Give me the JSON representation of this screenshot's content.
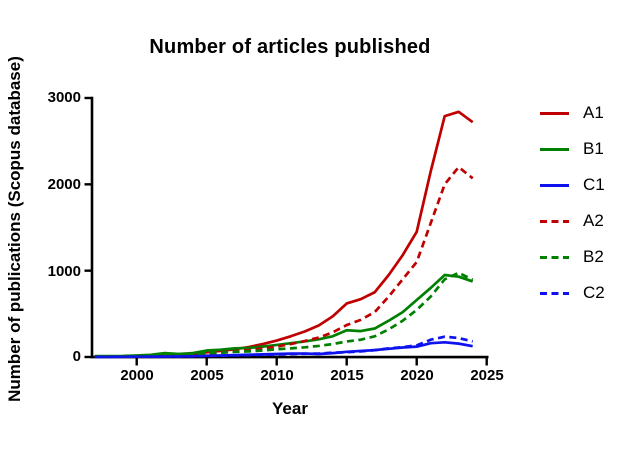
{
  "chart_data": {
    "type": "line",
    "title": "Number of articles published",
    "xlabel": "Year",
    "ylabel": "Number of publications (Scopus database)",
    "x": [
      1997,
      1998,
      1999,
      2000,
      2001,
      2002,
      2003,
      2004,
      2005,
      2006,
      2007,
      2008,
      2009,
      2010,
      2011,
      2012,
      2013,
      2014,
      2015,
      2016,
      2017,
      2018,
      2019,
      2020,
      2021,
      2022,
      2023,
      2024
    ],
    "x_ticks": [
      2000,
      2005,
      2010,
      2015,
      2020,
      2025
    ],
    "y_ticks": [
      3000,
      2000,
      1000,
      0
    ],
    "ylim": [
      0,
      3000
    ],
    "xlim": [
      1996.8,
      2026.3
    ],
    "grid": false,
    "legend_position": "right",
    "axis_color": "#000000",
    "series": [
      {
        "name": "A1",
        "color": "#c00000",
        "style": "solid",
        "values": [
          5,
          6,
          8,
          10,
          14,
          18,
          25,
          35,
          55,
          70,
          90,
          115,
          150,
          190,
          240,
          295,
          365,
          470,
          620,
          670,
          750,
          950,
          1180,
          1450,
          2150,
          2790,
          2840,
          2720
        ]
      },
      {
        "name": "B1",
        "color": "#008000",
        "style": "solid",
        "values": [
          10,
          10,
          12,
          18,
          25,
          45,
          35,
          45,
          75,
          85,
          100,
          105,
          120,
          140,
          160,
          180,
          205,
          240,
          310,
          300,
          330,
          420,
          520,
          660,
          800,
          950,
          930,
          875
        ]
      },
      {
        "name": "C1",
        "color": "#0d12ef",
        "style": "solid",
        "values": [
          2,
          2,
          3,
          4,
          5,
          6,
          8,
          10,
          15,
          18,
          22,
          26,
          30,
          35,
          40,
          40,
          35,
          45,
          60,
          70,
          80,
          95,
          110,
          120,
          160,
          170,
          155,
          125
        ]
      },
      {
        "name": "A2",
        "color": "#c00000",
        "style": "dashed",
        "values": [
          3,
          4,
          5,
          8,
          10,
          14,
          18,
          25,
          40,
          50,
          65,
          80,
          100,
          120,
          150,
          185,
          225,
          285,
          370,
          430,
          520,
          700,
          900,
          1100,
          1550,
          2000,
          2200,
          2070
        ]
      },
      {
        "name": "B2",
        "color": "#008000",
        "style": "dashed",
        "values": [
          4,
          5,
          6,
          10,
          14,
          20,
          18,
          25,
          45,
          50,
          60,
          65,
          75,
          90,
          100,
          112,
          128,
          150,
          180,
          200,
          240,
          320,
          420,
          545,
          700,
          900,
          975,
          895
        ]
      },
      {
        "name": "C2",
        "color": "#0d12ef",
        "style": "dashed",
        "values": [
          1,
          1,
          2,
          3,
          4,
          5,
          6,
          8,
          12,
          15,
          18,
          22,
          26,
          30,
          35,
          38,
          40,
          50,
          55,
          65,
          80,
          100,
          115,
          135,
          200,
          235,
          220,
          180
        ]
      }
    ]
  }
}
